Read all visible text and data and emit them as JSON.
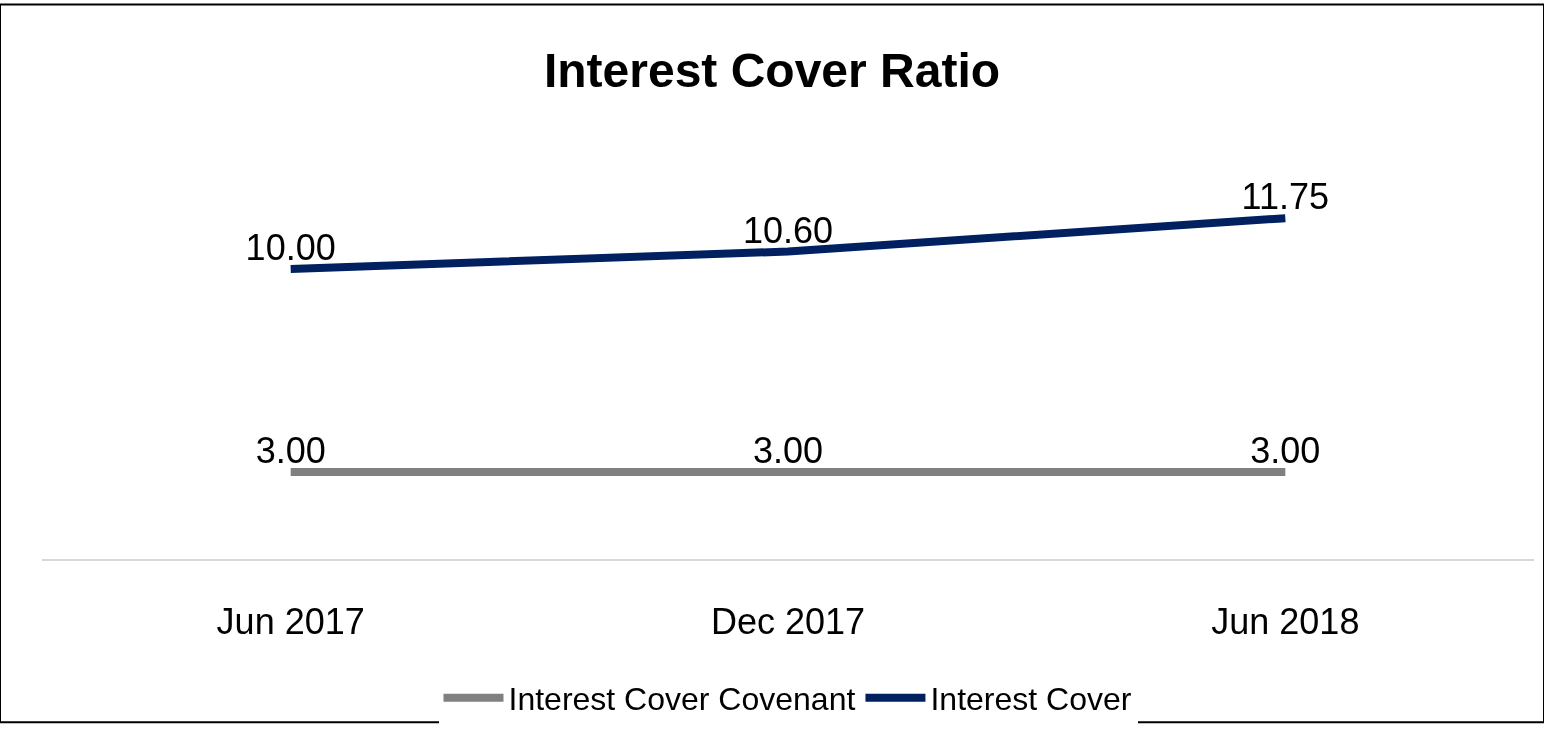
{
  "chart_data": {
    "type": "line",
    "title": "Interest Cover Ratio",
    "categories": [
      "Jun 2017",
      "Dec 2017",
      "Jun 2018"
    ],
    "series": [
      {
        "name": "Interest Cover Covenant",
        "color": "#808080",
        "values": [
          3.0,
          3.0,
          3.0
        ],
        "value_labels": [
          "3.00",
          "3.00",
          "3.00"
        ]
      },
      {
        "name": "Interest Cover",
        "color": "#002060",
        "values": [
          10.0,
          10.6,
          11.75
        ],
        "value_labels": [
          "10.00",
          "10.60",
          "11.75"
        ]
      }
    ],
    "legend": "bottom",
    "marker": "none",
    "line_style": "solid"
  }
}
